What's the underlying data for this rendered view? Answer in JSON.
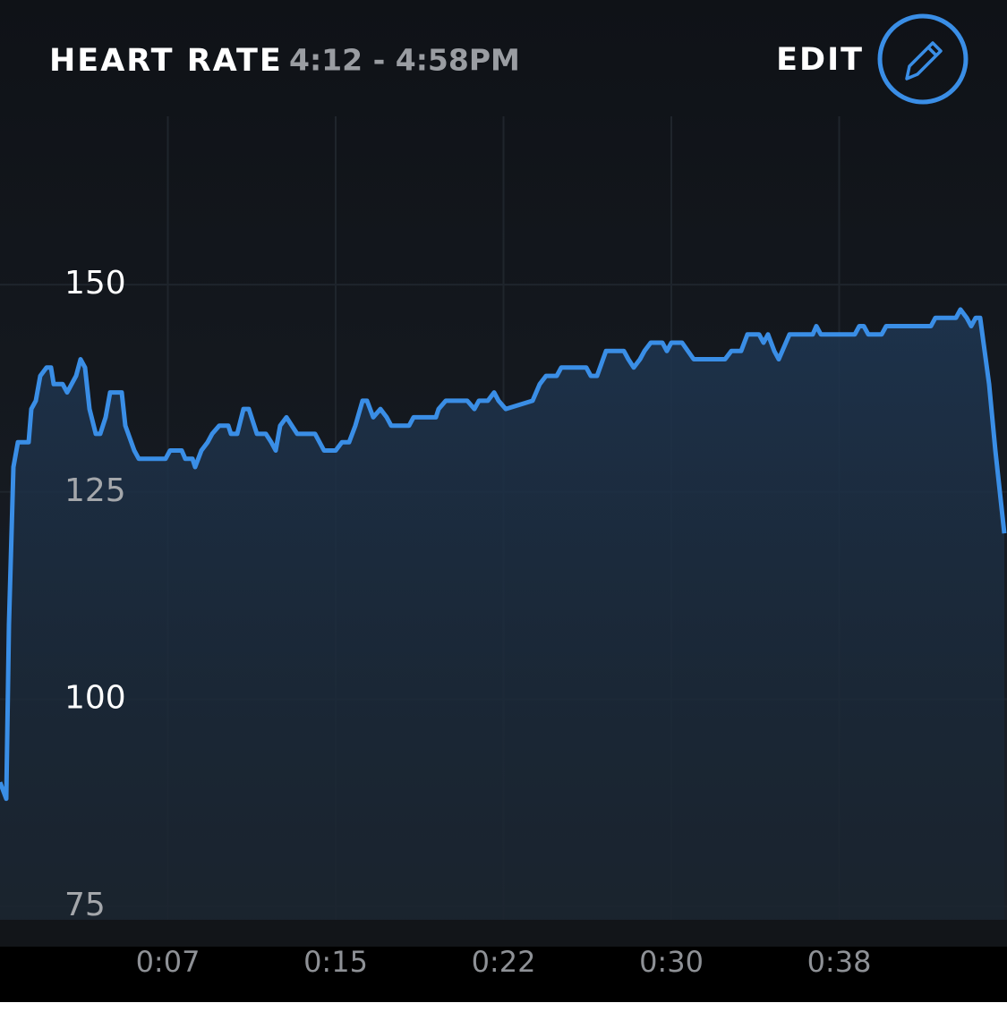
{
  "header": {
    "title": "HEART RATE",
    "time_range": "4:12 - 4:58PM",
    "edit": "EDIT"
  },
  "chart_data": {
    "type": "area",
    "color": "#3a8ee6",
    "x": [
      0,
      0.28,
      0.4,
      0.6,
      0.8,
      1.28,
      1.4,
      1.6,
      1.8,
      2.08,
      2.28,
      2.4,
      2.8,
      3.0,
      3.2,
      3.4,
      3.6,
      3.8,
      4.0,
      4.28,
      4.48,
      4.72,
      4.92,
      5.44,
      5.6,
      6.0,
      6.2,
      7.4,
      7.6,
      8.12,
      8.28,
      8.6,
      8.72,
      9.0,
      9.28,
      9.48,
      9.8,
      10.2,
      10.32,
      10.6,
      10.88,
      11.12,
      11.48,
      11.88,
      12.12,
      12.32,
      12.52,
      12.8,
      13.28,
      14.08,
      14.48,
      15.0,
      15.28,
      15.6,
      15.88,
      16.2,
      16.4,
      16.68,
      17.0,
      17.28,
      17.48,
      18.28,
      18.48,
      19.48,
      19.6,
      19.92,
      20.88,
      21.2,
      21.4,
      21.8,
      22.08,
      22.28,
      22.6,
      23.8,
      24.12,
      24.4,
      24.88,
      25.08,
      26.2,
      26.4,
      26.68,
      27.08,
      27.88,
      28.08,
      28.32,
      28.6,
      28.8,
      29.08,
      29.6,
      29.8,
      30.0,
      30.48,
      31.0,
      32.4,
      32.68,
      33.12,
      33.4,
      33.92,
      34.12,
      34.32,
      34.6,
      34.8,
      35.12,
      35.28,
      36.32,
      36.48,
      36.68,
      38.2,
      38.4,
      38.6,
      38.8,
      39.4,
      39.6,
      41.6,
      41.8,
      42.72,
      42.92,
      43.2,
      43.4,
      43.6,
      43.8,
      44.2,
      44.48,
      44.88
    ],
    "values": [
      90,
      88,
      109,
      128,
      131,
      131,
      135,
      136,
      139,
      140,
      140,
      138,
      138,
      137,
      138,
      139,
      141,
      140,
      135,
      132,
      132,
      134,
      137,
      137,
      133,
      130,
      129,
      129,
      130,
      130,
      129,
      129,
      128,
      130,
      131,
      132,
      133,
      133,
      132,
      132,
      135,
      135,
      132,
      132,
      131,
      130,
      133,
      134,
      132,
      132,
      130,
      130,
      131,
      131,
      133,
      136,
      136,
      134,
      135,
      134,
      133,
      133,
      134,
      134,
      135,
      136,
      136,
      135,
      136,
      136,
      137,
      136,
      135,
      136,
      138,
      139,
      139,
      140,
      140,
      139,
      139,
      142,
      142,
      141,
      140,
      141,
      142,
      143,
      143,
      142,
      143,
      143,
      141,
      141,
      142,
      142,
      144,
      144,
      143,
      144,
      142,
      141,
      143,
      144,
      144,
      145,
      144,
      144,
      145,
      145,
      144,
      144,
      145,
      145,
      146,
      146,
      147,
      146,
      145,
      146,
      146,
      138,
      130,
      120
    ],
    "xlim": [
      0,
      45
    ],
    "xticks": [
      {
        "value": 7.5,
        "label": "0:07"
      },
      {
        "value": 15,
        "label": "0:15"
      },
      {
        "value": 22.5,
        "label": "0:22"
      },
      {
        "value": 30,
        "label": "0:30"
      },
      {
        "value": 37.5,
        "label": "0:38"
      }
    ],
    "ylim": [
      73.4,
      170.3
    ],
    "yticks": [
      75,
      100,
      125,
      150
    ],
    "grid": true
  }
}
